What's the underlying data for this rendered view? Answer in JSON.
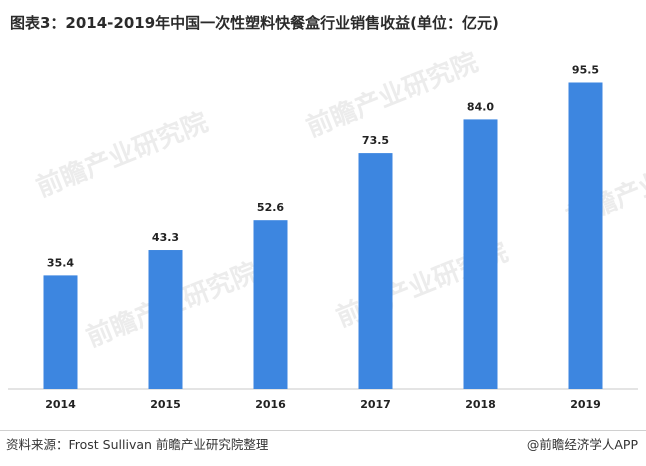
{
  "title": "图表3：2014-2019年中国一次性塑料快餐盒行业销售收益(单位：亿元)",
  "watermark": "前瞻产业研究院",
  "chart_data": {
    "type": "bar",
    "categories": [
      "2014",
      "2015",
      "2016",
      "2017",
      "2018",
      "2019"
    ],
    "values": [
      35.4,
      43.3,
      52.6,
      73.5,
      84.0,
      95.5
    ],
    "value_labels": [
      "35.4",
      "43.3",
      "52.6",
      "73.5",
      "84.0",
      "95.5"
    ],
    "title": "图表3：2014-2019年中国一次性塑料快餐盒行业销售收益(单位：亿元)",
    "xlabel": "",
    "ylabel": "",
    "ylim": [
      0,
      105
    ],
    "grid": false,
    "legend": "none",
    "bar_color": "#3d86e0"
  },
  "footer": {
    "source": "资料来源：Frost Sullivan  前瞻产业研究院整理",
    "credit": "@前瞻经济学人APP"
  }
}
